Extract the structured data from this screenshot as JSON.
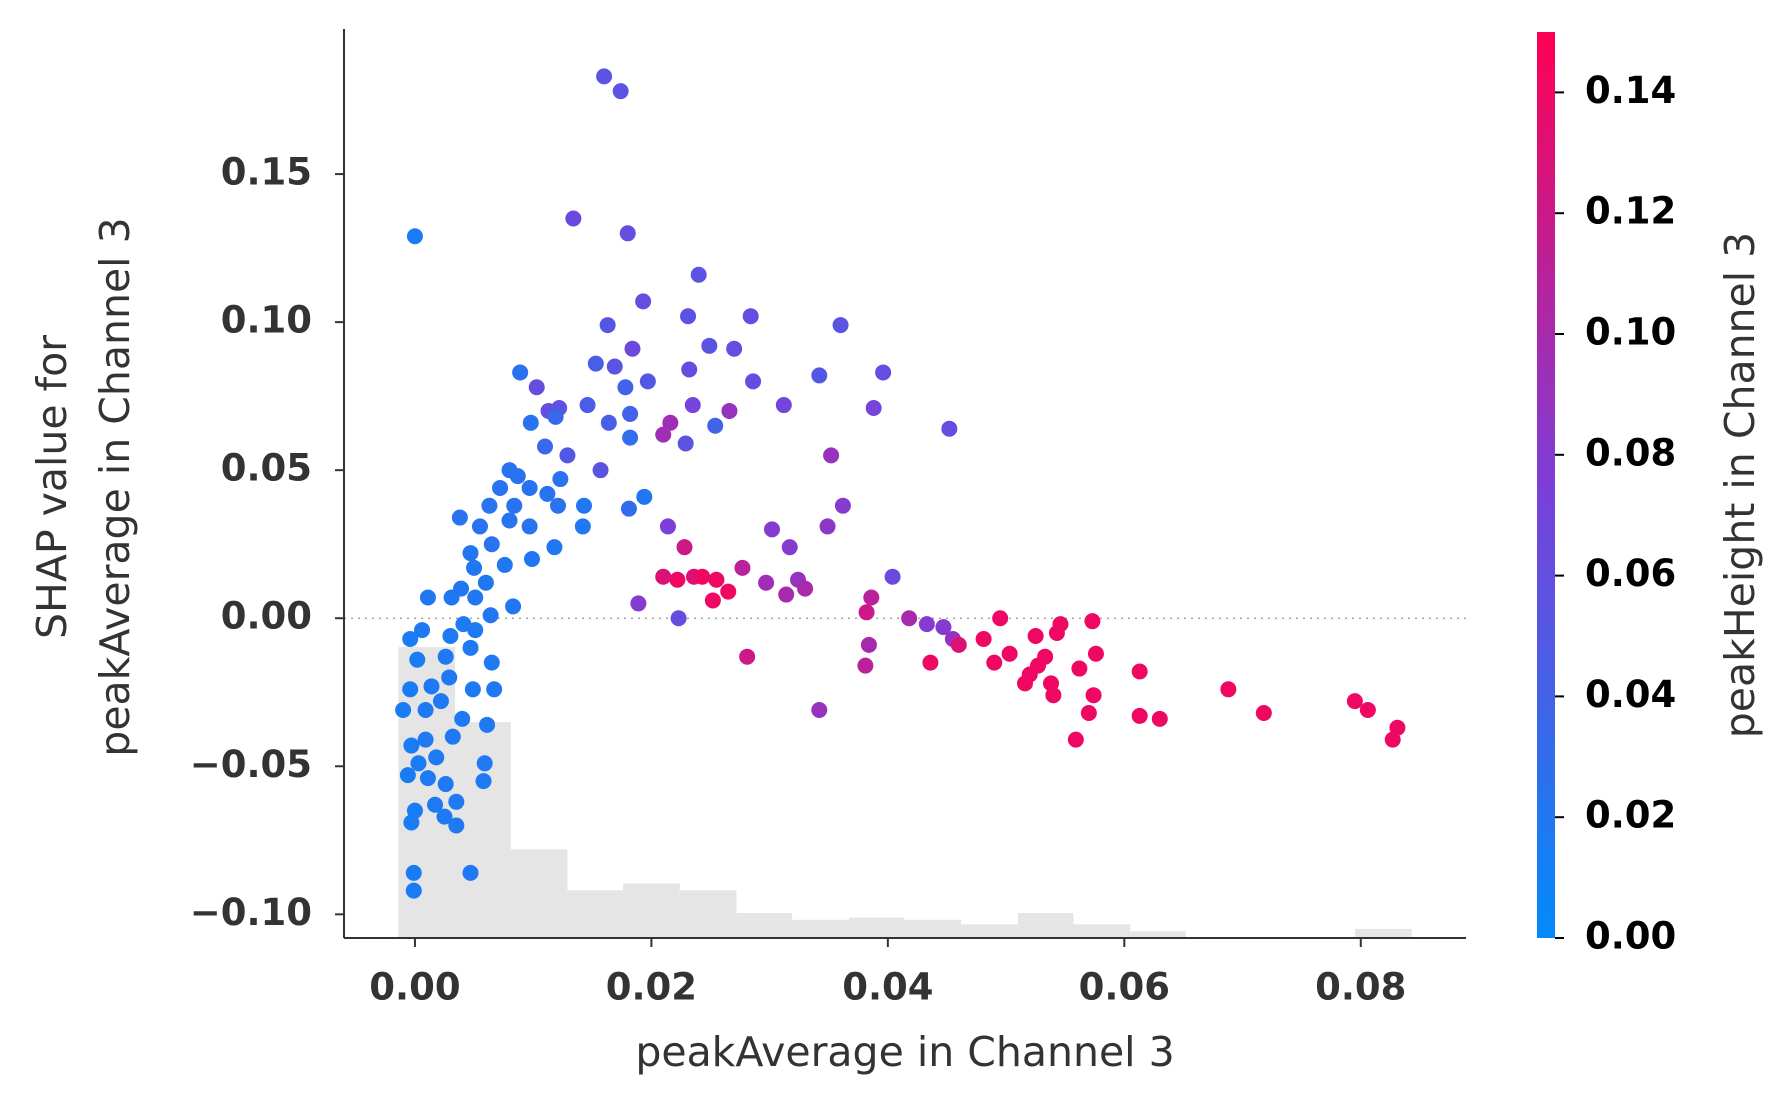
{
  "chart_data": {
    "type": "scatter",
    "xlabel": "peakAverage in Channel 3",
    "ylabel": [
      "SHAP value for",
      "peakAverage in Channel 3"
    ],
    "xlim": [
      -0.006,
      0.0889
    ],
    "ylim": [
      -0.108,
      0.199
    ],
    "xticks": [
      {
        "value": 0,
        "label": "0.00"
      },
      {
        "value": 0.02,
        "label": "0.02"
      },
      {
        "value": 0.04,
        "label": "0.04"
      },
      {
        "value": 0.06,
        "label": "0.06"
      },
      {
        "value": 0.08,
        "label": "0.08"
      }
    ],
    "yticks": [
      {
        "value": -0.1,
        "label": "−0.10"
      },
      {
        "value": -0.05,
        "label": "−0.05"
      },
      {
        "value": 0,
        "label": "0.00"
      },
      {
        "value": 0.05,
        "label": "0.05"
      },
      {
        "value": 0.1,
        "label": "0.10"
      },
      {
        "value": 0.15,
        "label": "0.15"
      }
    ],
    "colorbar": {
      "label": "peakHeight in Channel 3",
      "clim": [
        0,
        0.15
      ],
      "ticks": [
        {
          "value": 0,
          "label": "0.00"
        },
        {
          "value": 0.02,
          "label": "0.02"
        },
        {
          "value": 0.04,
          "label": "0.04"
        },
        {
          "value": 0.06,
          "label": "0.06"
        },
        {
          "value": 0.08,
          "label": "0.08"
        },
        {
          "value": 0.1,
          "label": "0.10"
        },
        {
          "value": 0.12,
          "label": "0.12"
        },
        {
          "value": 0.14,
          "label": "0.14"
        }
      ],
      "colormap": [
        "#008bfb",
        "#7c3fd9",
        "#ff0052"
      ]
    },
    "histogram": {
      "color": "#e5e5e5",
      "bins": [
        -0.0014,
        0.0034,
        0.0081,
        0.0129,
        0.0176,
        0.0224,
        0.0272,
        0.0319,
        0.0367,
        0.0414,
        0.0462,
        0.051,
        0.0557,
        0.0605,
        0.0652,
        0.07,
        0.0748,
        0.0795,
        0.0843
      ],
      "counts": [
        128,
        95,
        39,
        21,
        24,
        21,
        11,
        8,
        9,
        8,
        6,
        11,
        6,
        3,
        0,
        0,
        0,
        4
      ]
    },
    "x": [
      0.016,
      0.0174,
      0.0134,
      0.018,
      0.0,
      0.024,
      0.0193,
      0.0231,
      0.0284,
      0.0163,
      0.0249,
      0.027,
      0.0184,
      0.0153,
      0.0169,
      0.036,
      0.0232,
      0.0197,
      0.0089,
      0.0103,
      0.0286,
      0.0342,
      0.0396,
      0.0122,
      0.0113,
      0.0146,
      0.0178,
      0.0182,
      0.0312,
      0.0235,
      0.0266,
      0.0388,
      0.0452,
      0.0164,
      0.0216,
      0.021,
      0.0254,
      0.0229,
      0.0182,
      0.011,
      0.0129,
      0.0352,
      0.0157,
      0.0194,
      0.0181,
      0.0362,
      0.0214,
      0.0302,
      0.0349,
      0.0317,
      0.0228,
      0.0277,
      0.0404,
      0.0297,
      0.0324,
      0.033,
      0.0314,
      0.021,
      0.0222,
      0.0236,
      0.0243,
      0.0255,
      0.0265,
      0.0252,
      0.0189,
      0.0223,
      0.0386,
      0.0382,
      0.0418,
      0.0433,
      0.0447,
      0.0455,
      0.046,
      0.0384,
      0.0281,
      0.0381,
      0.0436,
      0.0481,
      0.0495,
      0.0503,
      0.049,
      0.0525,
      0.0543,
      0.0546,
      0.0533,
      0.0527,
      0.052,
      0.0516,
      0.0538,
      0.0562,
      0.0573,
      0.0576,
      0.0574,
      0.057,
      0.054,
      0.0559,
      0.0613,
      0.0613,
      0.063,
      0.0688,
      0.0718,
      0.0795,
      0.0806,
      0.0831,
      0.0827,
      0.0342,
      0.0098,
      0.0119,
      0.008,
      0.0087,
      0.0097,
      0.0072,
      0.0063,
      0.0084,
      0.008,
      0.0097,
      0.0112,
      0.0123,
      0.0121,
      0.0143,
      0.0142,
      0.0118,
      0.0099,
      0.0076,
      0.0065,
      0.0047,
      0.005,
      0.006,
      0.0038,
      0.0055,
      0.0039,
      0.0051,
      0.0031,
      0.0011,
      0.0083,
      0.0064,
      0.0041,
      0.0051,
      0.003,
      0.0006,
      -0.0004,
      0.0002,
      0.0026,
      0.0047,
      0.0065,
      0.0067,
      0.0049,
      0.0029,
      0.0014,
      -0.0004,
      -0.001,
      0.0009,
      0.0022,
      0.004,
      0.0061,
      0.0032,
      0.0009,
      -0.0003,
      0.0018,
      0.0003,
      -0.0006,
      0.0011,
      0.0026,
      0.0059,
      0.0058,
      0.0035,
      0.0017,
      0.0,
      -0.0003,
      0.0025,
      0.0035,
      -0.0001,
      -0.0001,
      0.0047
    ],
    "y": [
      0.183,
      0.178,
      0.135,
      0.13,
      0.129,
      0.116,
      0.107,
      0.102,
      0.102,
      0.099,
      0.092,
      0.091,
      0.091,
      0.086,
      0.085,
      0.099,
      0.084,
      0.08,
      0.083,
      0.078,
      0.08,
      0.082,
      0.083,
      0.071,
      0.07,
      0.072,
      0.078,
      0.069,
      0.072,
      0.072,
      0.07,
      0.071,
      0.064,
      0.066,
      0.066,
      0.062,
      0.065,
      0.059,
      0.061,
      0.058,
      0.055,
      0.055,
      0.05,
      0.041,
      0.037,
      0.038,
      0.031,
      0.03,
      0.031,
      0.024,
      0.024,
      0.017,
      0.014,
      0.012,
      0.013,
      0.01,
      0.008,
      0.014,
      0.013,
      0.014,
      0.014,
      0.013,
      0.009,
      0.006,
      0.005,
      0.0,
      0.007,
      0.002,
      0.0,
      -0.002,
      -0.003,
      -0.007,
      -0.009,
      -0.009,
      -0.013,
      -0.016,
      -0.015,
      -0.007,
      0.0,
      -0.012,
      -0.015,
      -0.006,
      -0.005,
      -0.002,
      -0.013,
      -0.016,
      -0.019,
      -0.022,
      -0.022,
      -0.017,
      -0.001,
      -0.012,
      -0.026,
      -0.032,
      -0.026,
      -0.041,
      -0.018,
      -0.033,
      -0.034,
      -0.024,
      -0.032,
      -0.028,
      -0.031,
      -0.037,
      -0.041,
      -0.031,
      0.066,
      0.068,
      0.05,
      0.048,
      0.044,
      0.044,
      0.038,
      0.038,
      0.033,
      0.031,
      0.042,
      0.047,
      0.038,
      0.038,
      0.031,
      0.024,
      0.02,
      0.018,
      0.025,
      0.022,
      0.017,
      0.012,
      0.034,
      0.031,
      0.01,
      0.007,
      0.007,
      0.007,
      0.004,
      0.001,
      -0.002,
      -0.004,
      -0.006,
      -0.004,
      -0.007,
      -0.014,
      -0.013,
      -0.01,
      -0.015,
      -0.024,
      -0.024,
      -0.02,
      -0.023,
      -0.024,
      -0.031,
      -0.031,
      -0.028,
      -0.034,
      -0.036,
      -0.04,
      -0.041,
      -0.043,
      -0.047,
      -0.049,
      -0.053,
      -0.054,
      -0.056,
      -0.049,
      -0.055,
      -0.062,
      -0.063,
      -0.065,
      -0.069,
      -0.067,
      -0.07,
      -0.086,
      -0.092,
      -0.086
    ],
    "color_values": [
      0.055,
      0.055,
      0.065,
      0.06,
      0.015,
      0.055,
      0.06,
      0.055,
      0.06,
      0.05,
      0.055,
      0.06,
      0.065,
      0.045,
      0.055,
      0.055,
      0.06,
      0.05,
      0.025,
      0.06,
      0.06,
      0.05,
      0.06,
      0.055,
      0.06,
      0.045,
      0.04,
      0.04,
      0.07,
      0.07,
      0.09,
      0.07,
      0.06,
      0.045,
      0.095,
      0.095,
      0.04,
      0.055,
      0.03,
      0.035,
      0.05,
      0.09,
      0.055,
      0.02,
      0.03,
      0.08,
      0.075,
      0.08,
      0.085,
      0.08,
      0.12,
      0.11,
      0.065,
      0.095,
      0.09,
      0.1,
      0.1,
      0.13,
      0.14,
      0.13,
      0.14,
      0.14,
      0.14,
      0.14,
      0.08,
      0.06,
      0.11,
      0.12,
      0.1,
      0.08,
      0.08,
      0.09,
      0.13,
      0.1,
      0.12,
      0.11,
      0.14,
      0.14,
      0.14,
      0.14,
      0.14,
      0.14,
      0.14,
      0.14,
      0.14,
      0.14,
      0.14,
      0.14,
      0.14,
      0.14,
      0.14,
      0.14,
      0.14,
      0.14,
      0.14,
      0.14,
      0.14,
      0.14,
      0.14,
      0.14,
      0.14,
      0.14,
      0.14,
      0.14,
      0.14,
      0.09,
      0.025,
      0.035,
      0.025,
      0.025,
      0.025,
      0.025,
      0.025,
      0.025,
      0.025,
      0.025,
      0.025,
      0.025,
      0.025,
      0.02,
      0.02,
      0.02,
      0.02,
      0.02,
      0.025,
      0.02,
      0.02,
      0.02,
      0.025,
      0.025,
      0.02,
      0.02,
      0.02,
      0.02,
      0.02,
      0.02,
      0.018,
      0.018,
      0.018,
      0.018,
      0.015,
      0.015,
      0.018,
      0.018,
      0.018,
      0.018,
      0.018,
      0.018,
      0.018,
      0.015,
      0.015,
      0.018,
      0.018,
      0.018,
      0.018,
      0.018,
      0.018,
      0.015,
      0.018,
      0.015,
      0.015,
      0.018,
      0.018,
      0.018,
      0.018,
      0.018,
      0.018,
      0.015,
      0.015,
      0.018,
      0.018,
      0.015,
      0.015,
      0.018
    ]
  }
}
